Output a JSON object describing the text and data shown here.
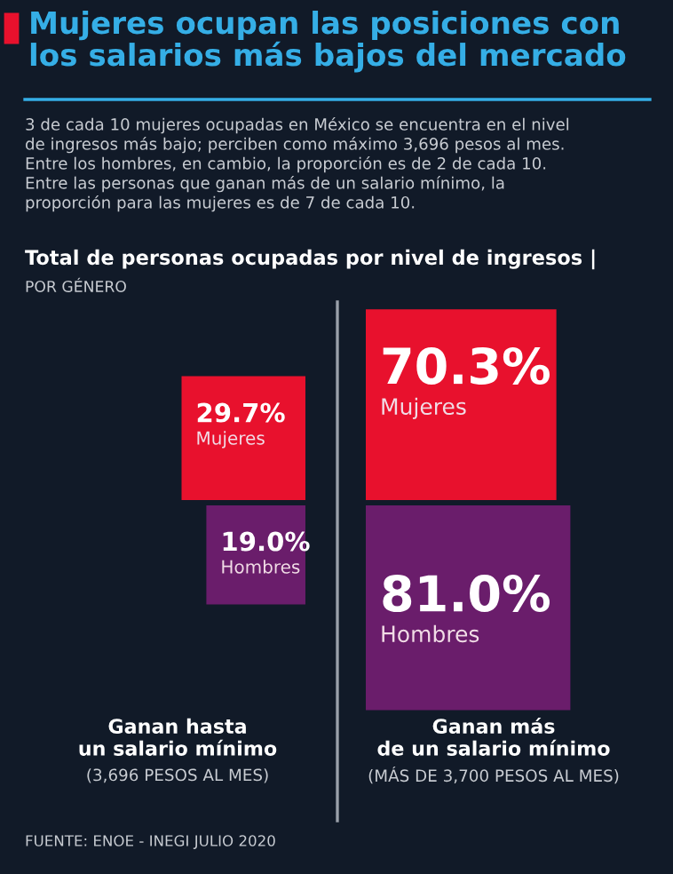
{
  "chart_data": {
    "type": "other",
    "title": "Mujeres ocupan las posiciones con\nlos salarios más bajos del mercado",
    "subtitle": "3 de cada 10 mujeres ocupadas en México se encuentra en el nivel\nde ingresos más bajo; perciben como máximo 3,696 pesos al mes.\nEntre los hombres, en cambio, la proporción es de 2 de cada 10.\nEntre las personas que ganan más de un salario mínimo, la\nproporción para las mujeres es de 7 de cada 10.",
    "annotations": [
      "Total de personas ocupadas por nivel de ingresos |",
      "POR GÉNERO",
      "FUENTE: ENOE - INEGI JULIO 2020"
    ],
    "categories": [
      "Ganan hasta\nun salario mínimo\n(3,696 PESOS AL MES)",
      "Ganan más\nde un salario mínimo\n(MÁS DE 3,700 PESOS AL MES)"
    ],
    "series": [
      {
        "name": "Mujeres",
        "color": "#e8112d",
        "values": [
          29.7,
          70.3
        ],
        "value_labels": [
          "29.7%",
          "70.3%"
        ]
      },
      {
        "name": "Hombres",
        "color": "#6a1d6b",
        "values": [
          19.0,
          81.0
        ],
        "value_labels": [
          "19.0%",
          "81.0%"
        ]
      }
    ]
  }
}
